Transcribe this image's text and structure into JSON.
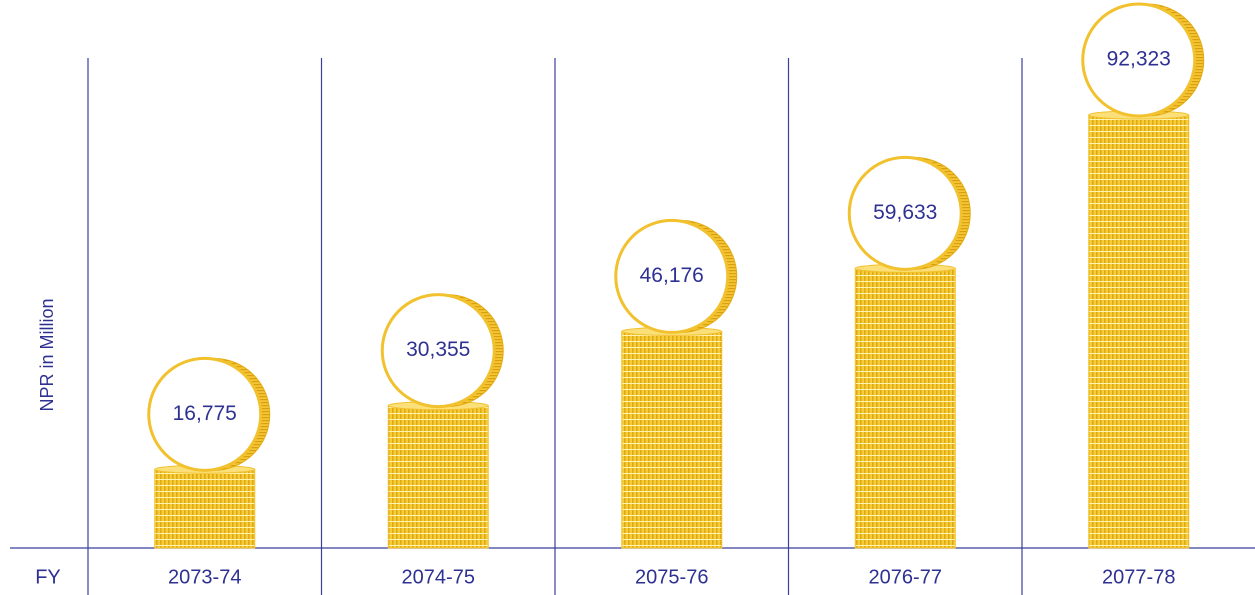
{
  "chart_data": {
    "type": "bar",
    "y_label": "NPR in Million",
    "x_label": "FY",
    "categories": [
      "2073-74",
      "2074-75",
      "2075-76",
      "2076-77",
      "2077-78"
    ],
    "values": [
      16775,
      30355,
      46176,
      59633,
      92323
    ],
    "value_labels": [
      "16,775",
      "30,355",
      "46,176",
      "59,633",
      "92,323"
    ],
    "color": "#f2c12e",
    "ylim": [
      0,
      100000
    ]
  }
}
